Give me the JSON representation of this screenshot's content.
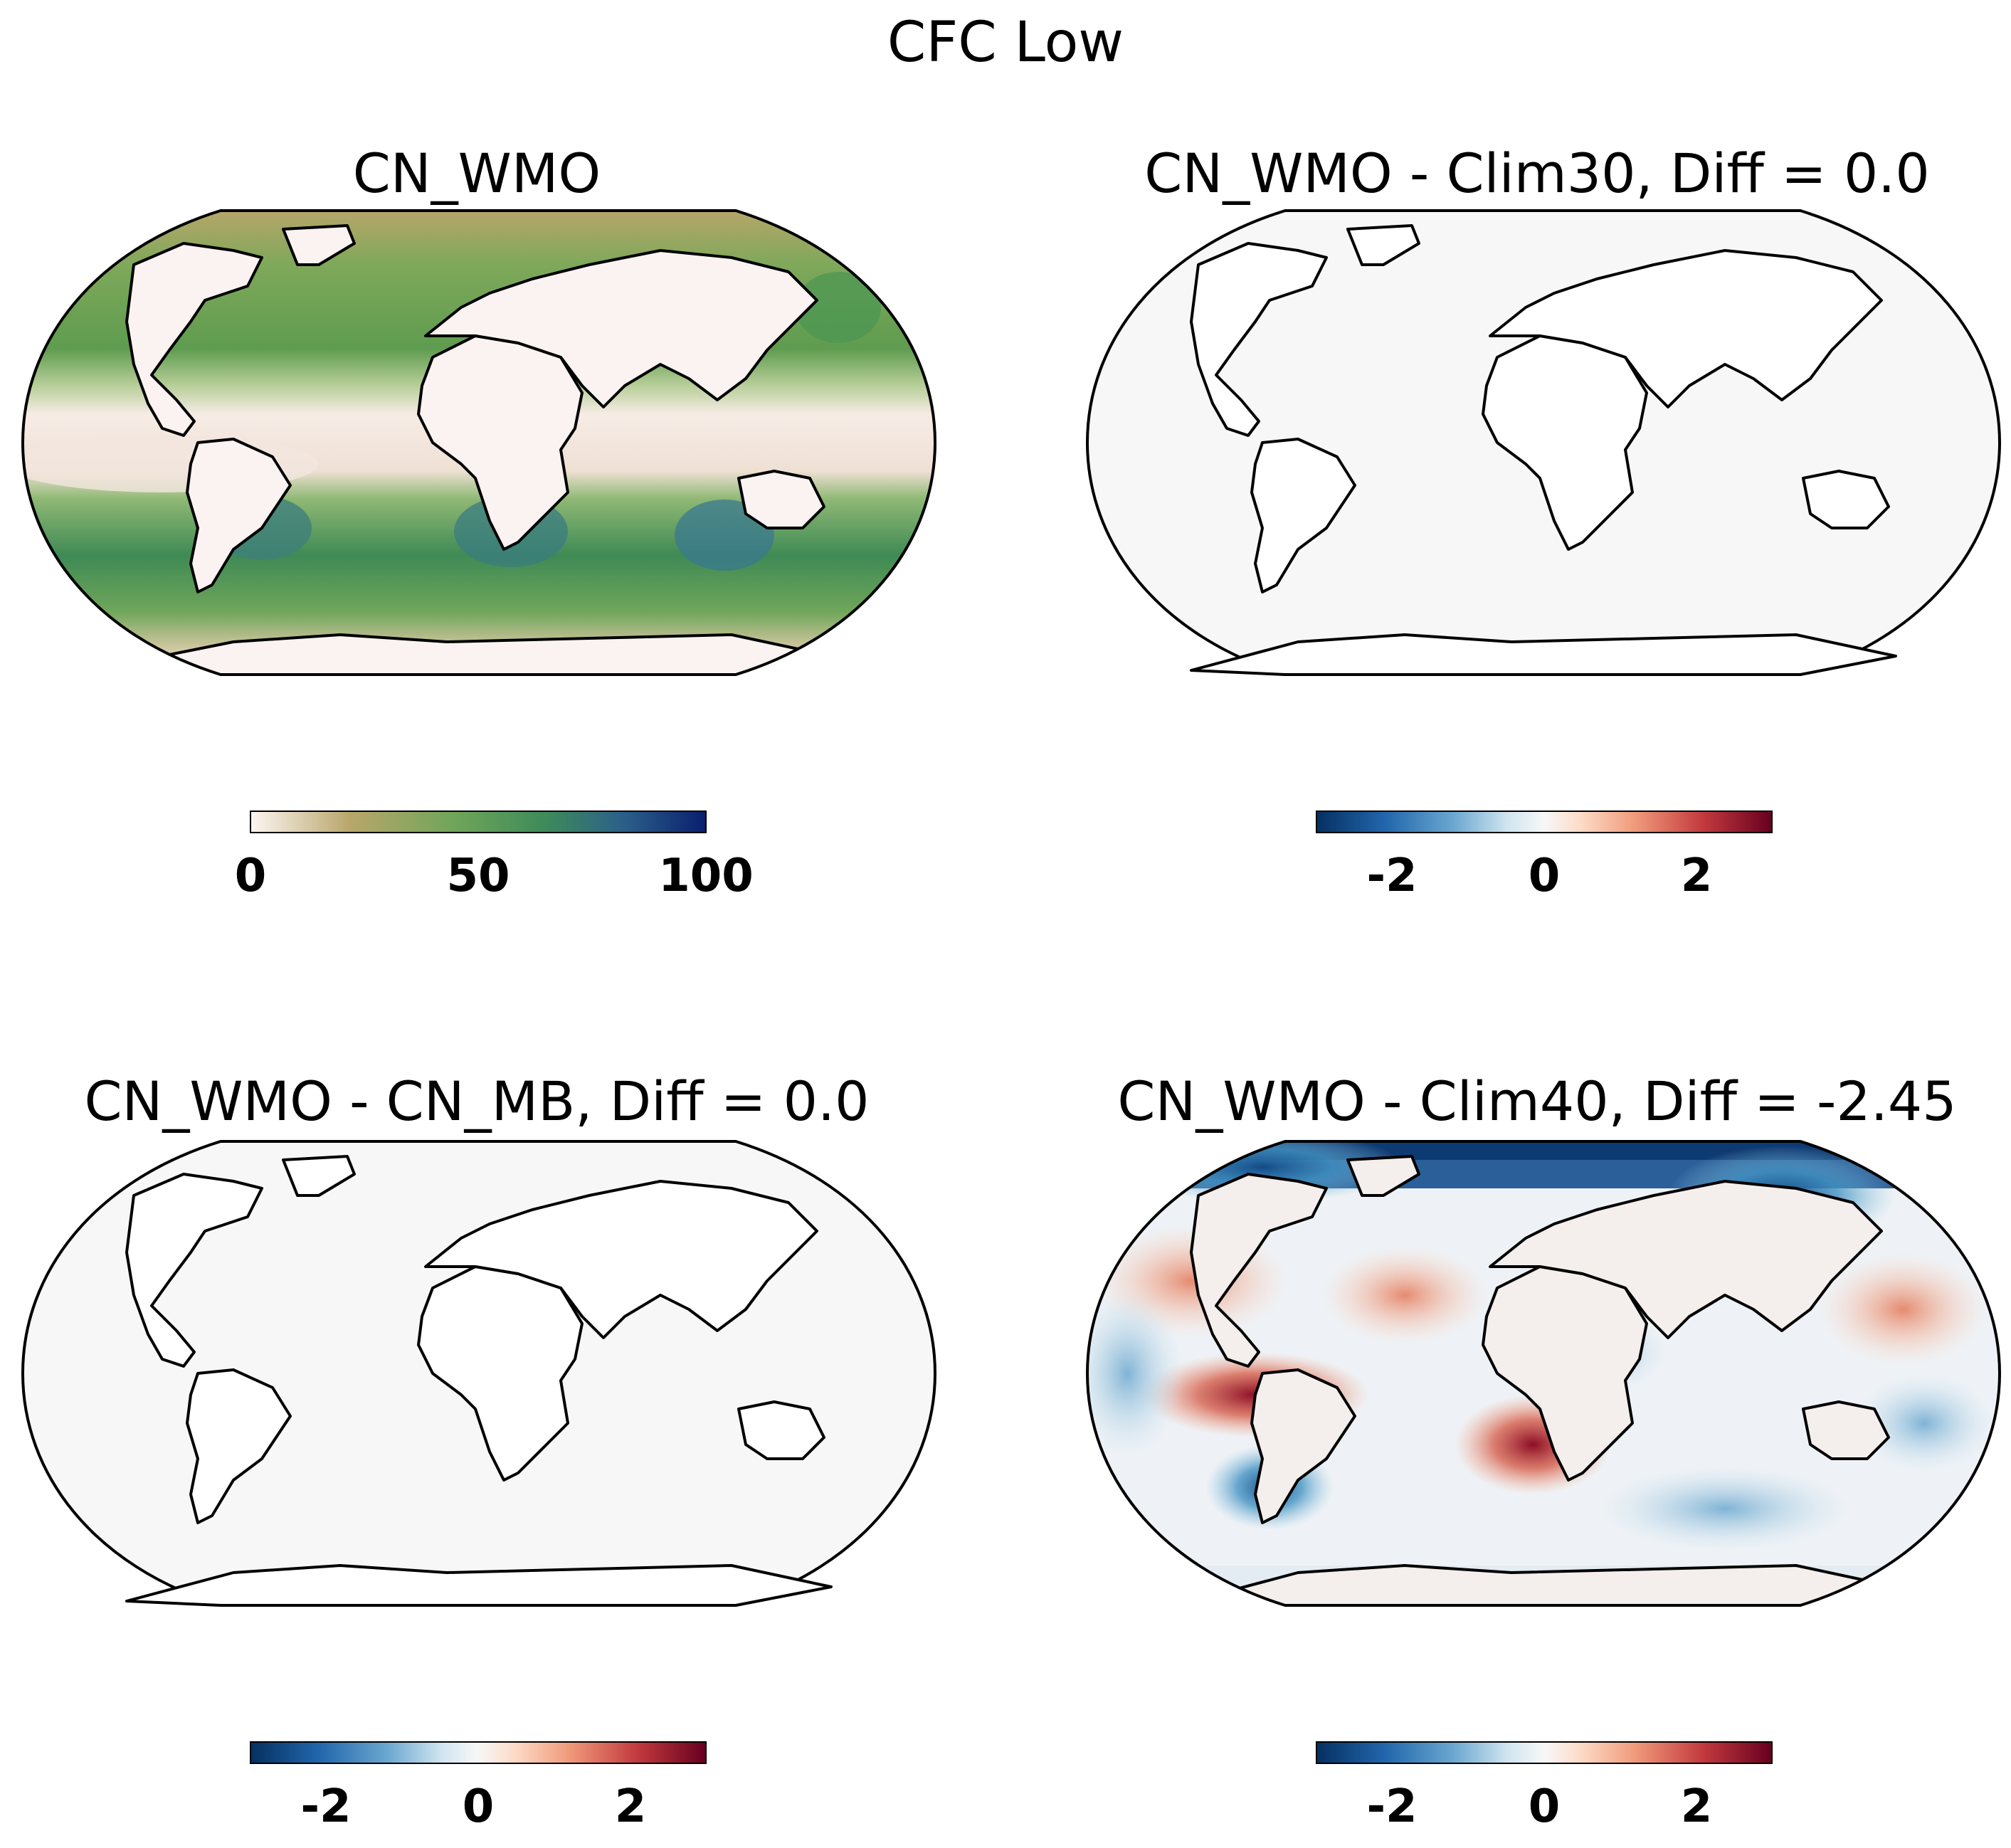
{
  "figure": {
    "title": "CFC Low"
  },
  "panels": [
    {
      "id": "cn-wmo",
      "title": "CN_WMO",
      "colorbar": {
        "cmap": "gist_earth_r",
        "range": [
          0,
          100
        ],
        "ticks": [
          "0",
          "50",
          "100"
        ]
      }
    },
    {
      "id": "clim30-diff",
      "title": "CN_WMO - Clim30, Diff = 0.0",
      "colorbar": {
        "cmap": "RdBu_r",
        "range": [
          -3,
          3
        ],
        "ticks": [
          "-2",
          "0",
          "2"
        ]
      }
    },
    {
      "id": "cn-mb-diff",
      "title": "CN_WMO - CN_MB, Diff = 0.0",
      "colorbar": {
        "cmap": "RdBu_r",
        "range": [
          -3,
          3
        ],
        "ticks": [
          "-2",
          "0",
          "2"
        ]
      }
    },
    {
      "id": "clim40-diff",
      "title": "CN_WMO - Clim40, Diff = -2.45",
      "colorbar": {
        "cmap": "RdBu_r",
        "range": [
          -3,
          3
        ],
        "ticks": [
          "-2",
          "0",
          "2"
        ]
      }
    }
  ],
  "colors": {
    "earth_low": "#fdf6f3",
    "earth_mid": "#b8a66a",
    "earth_green": "#5a9a4c",
    "earth_high": "#0a1f6e",
    "diff_neg": "#053061",
    "diff_zero": "#f7f7f7",
    "diff_pos": "#67001f"
  }
}
